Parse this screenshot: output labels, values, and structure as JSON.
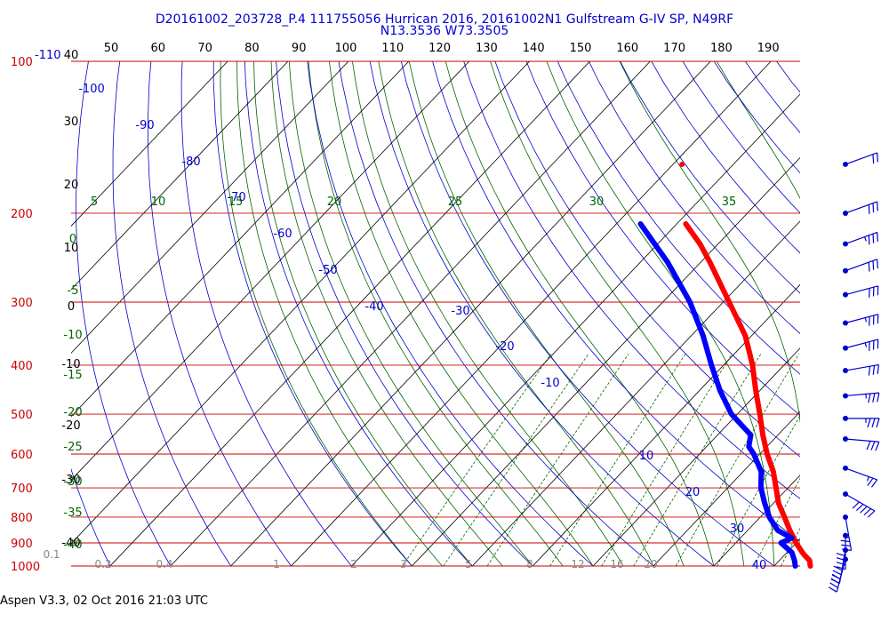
{
  "header": {
    "title_line1": "D20161002_203728_P.4 111755056 Hurrican 2016, 20161002N1 Gulfstream G-IV SP, N49RF",
    "title_line2": "N13.3536 W73.3505"
  },
  "footer": {
    "text": "Aspen V3.3, 02 Oct 2016  21:03 UTC"
  },
  "colors": {
    "isobar": "#cc0000",
    "isotherm": "#000000",
    "dry_adiabat": "#0000cc",
    "moist_adiabat": "#006600",
    "mixing_ratio": "#006600",
    "temperature": "#ff0000",
    "dewpoint": "#0000ff",
    "wind_barb": "#0000cc"
  },
  "chart_data": {
    "type": "skew-t",
    "pressure_levels": {
      "labels": [
        "100",
        "200",
        "300",
        "400",
        "500",
        "600",
        "700",
        "800",
        "900",
        "1000"
      ],
      "values": [
        100,
        200,
        300,
        400,
        500,
        600,
        700,
        800,
        900,
        1000
      ]
    },
    "pressure_label_100_extra": "-110",
    "top_scale_labels": [
      "50",
      "60",
      "70",
      "80",
      "90",
      "100",
      "110",
      "120",
      "130",
      "140",
      "150",
      "160",
      "170",
      "180",
      "190"
    ],
    "isotherm_left_labels": [
      "40",
      "30",
      "20",
      "10",
      "0",
      "-10",
      "-20",
      "-30",
      "-40"
    ],
    "dry_adiabat_labels": [
      "-100",
      "-90",
      "-80",
      "-70",
      "-60",
      "-50",
      "-40",
      "-30",
      "-20",
      "-10",
      "10",
      "20",
      "30",
      "40"
    ],
    "moist_adiabat_top_labels": [
      "5",
      "10",
      "15",
      "20",
      "25",
      "30",
      "35"
    ],
    "moist_adiabat_left_labels": [
      "0",
      "-5",
      "-10",
      "-15",
      "-20",
      "-25",
      "-30",
      "-35",
      "-40"
    ],
    "mixing_ratio_labels": [
      "0.1",
      "0.2",
      "0.4",
      "1",
      "2",
      "3",
      "5",
      "8",
      "12",
      "16",
      "20"
    ],
    "temperature_profile": [
      {
        "p": 1000,
        "t": 26.0
      },
      {
        "p": 975,
        "t": 25.0
      },
      {
        "p": 950,
        "t": 23.2
      },
      {
        "p": 925,
        "t": 21.6
      },
      {
        "p": 900,
        "t": 20.0
      },
      {
        "p": 850,
        "t": 17.0
      },
      {
        "p": 800,
        "t": 14.0
      },
      {
        "p": 750,
        "t": 10.8
      },
      {
        "p": 700,
        "t": 8.0
      },
      {
        "p": 650,
        "t": 5.0
      },
      {
        "p": 600,
        "t": 1.2
      },
      {
        "p": 550,
        "t": -2.5
      },
      {
        "p": 500,
        "t": -6.3
      },
      {
        "p": 450,
        "t": -10.6
      },
      {
        "p": 400,
        "t": -15.2
      },
      {
        "p": 350,
        "t": -21.0
      },
      {
        "p": 300,
        "t": -29.0
      },
      {
        "p": 250,
        "t": -38.5
      },
      {
        "p": 230,
        "t": -43.0
      },
      {
        "p": 210,
        "t": -48.5
      }
    ],
    "temperature_isolated_point": {
      "p": 160,
      "t": -58.5
    },
    "dewpoint_profile": [
      {
        "p": 1000,
        "t": 23.5
      },
      {
        "p": 975,
        "t": 22.5
      },
      {
        "p": 940,
        "t": 20.8
      },
      {
        "p": 900,
        "t": 17.5
      },
      {
        "p": 880,
        "t": 18.5
      },
      {
        "p": 850,
        "t": 15.0
      },
      {
        "p": 800,
        "t": 11.5
      },
      {
        "p": 750,
        "t": 8.5
      },
      {
        "p": 700,
        "t": 5.5
      },
      {
        "p": 650,
        "t": 3.0
      },
      {
        "p": 600,
        "t": -1.0
      },
      {
        "p": 580,
        "t": -3.0
      },
      {
        "p": 550,
        "t": -4.5
      },
      {
        "p": 500,
        "t": -11.0
      },
      {
        "p": 450,
        "t": -16.5
      },
      {
        "p": 400,
        "t": -22.0
      },
      {
        "p": 350,
        "t": -28.0
      },
      {
        "p": 300,
        "t": -35.5
      },
      {
        "p": 250,
        "t": -45.5
      },
      {
        "p": 210,
        "t": -56.0
      }
    ],
    "wind_barbs": [
      {
        "p": 160,
        "dir": 250,
        "spd": 20
      },
      {
        "p": 200,
        "dir": 250,
        "spd": 30
      },
      {
        "p": 230,
        "dir": 250,
        "spd": 35
      },
      {
        "p": 260,
        "dir": 250,
        "spd": 30
      },
      {
        "p": 290,
        "dir": 255,
        "spd": 30
      },
      {
        "p": 330,
        "dir": 255,
        "spd": 35
      },
      {
        "p": 370,
        "dir": 255,
        "spd": 35
      },
      {
        "p": 410,
        "dir": 260,
        "spd": 30
      },
      {
        "p": 460,
        "dir": 265,
        "spd": 35
      },
      {
        "p": 510,
        "dir": 270,
        "spd": 35
      },
      {
        "p": 560,
        "dir": 275,
        "spd": 30
      },
      {
        "p": 640,
        "dir": 290,
        "spd": 25
      },
      {
        "p": 720,
        "dir": 300,
        "spd": 50
      },
      {
        "p": 800,
        "dir": 350,
        "spd": 35
      },
      {
        "p": 870,
        "dir": 0,
        "spd": 40
      },
      {
        "p": 930,
        "dir": 10,
        "spd": 40
      },
      {
        "p": 970,
        "dir": 15,
        "spd": 40
      }
    ]
  }
}
